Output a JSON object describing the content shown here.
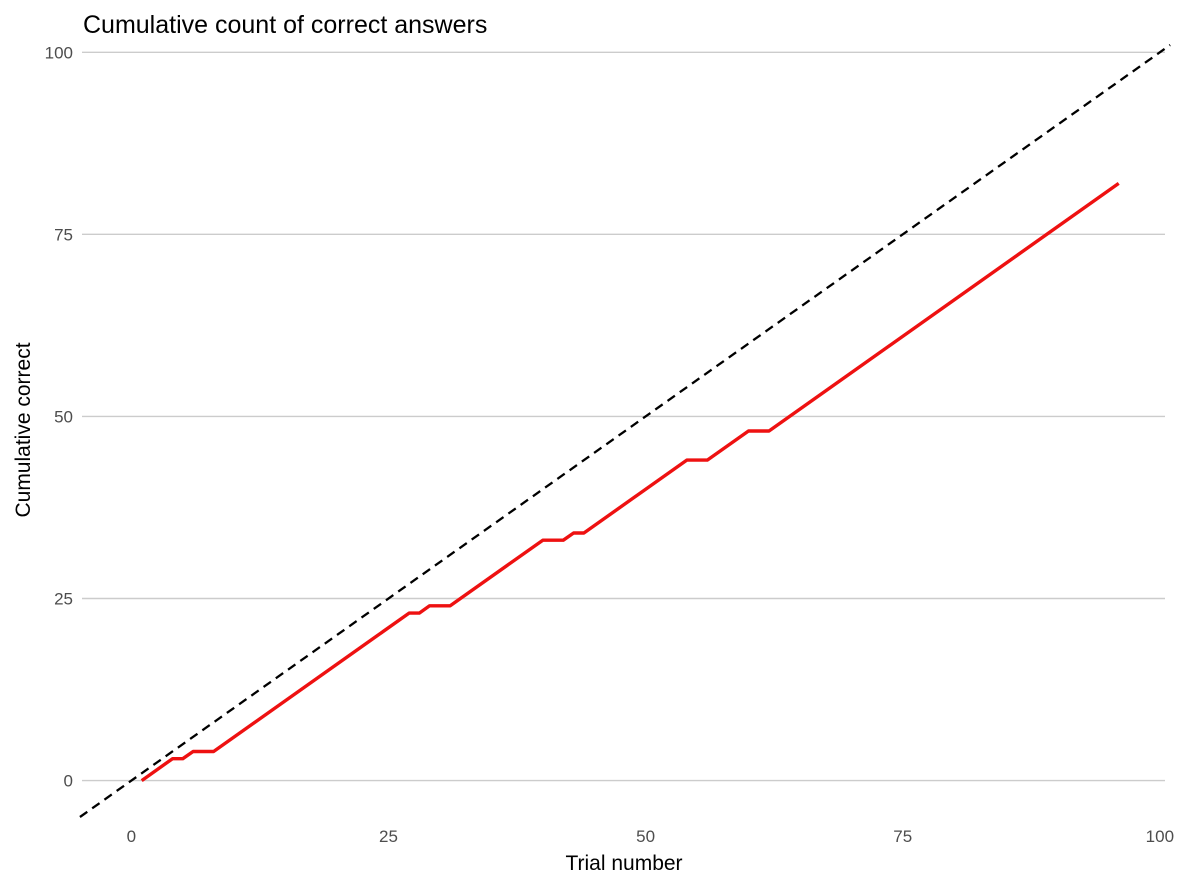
{
  "chart_data": {
    "type": "line",
    "title": "Cumulative count of correct answers",
    "xlabel": "Trial number",
    "ylabel": "Cumulative correct",
    "xlim": [
      -4.8,
      100.5
    ],
    "ylim": [
      -5,
      101
    ],
    "x_ticks": [
      0,
      25,
      50,
      75,
      100
    ],
    "y_ticks": [
      0,
      25,
      50,
      75,
      100
    ],
    "x_tick_labels": [
      "0",
      "25",
      "50",
      "75",
      "100"
    ],
    "y_tick_labels": [
      "0",
      "25",
      "50",
      "75",
      "100"
    ],
    "grid": "horizontal major gridlines",
    "legend": "none",
    "reference_line": {
      "x": [
        -5,
        101
      ],
      "y": [
        -5,
        101
      ],
      "style": "dashed",
      "color": "#000000"
    },
    "series": [
      {
        "color": "#ee1111",
        "x": [
          1,
          4,
          5,
          6,
          8,
          27,
          28,
          29,
          31,
          40,
          42,
          43,
          44,
          54,
          56,
          60,
          62,
          96
        ],
        "y": [
          0,
          3,
          3,
          4,
          4,
          23,
          23,
          24,
          24,
          33,
          33,
          34,
          34,
          44,
          44,
          48,
          48,
          82
        ]
      }
    ]
  }
}
